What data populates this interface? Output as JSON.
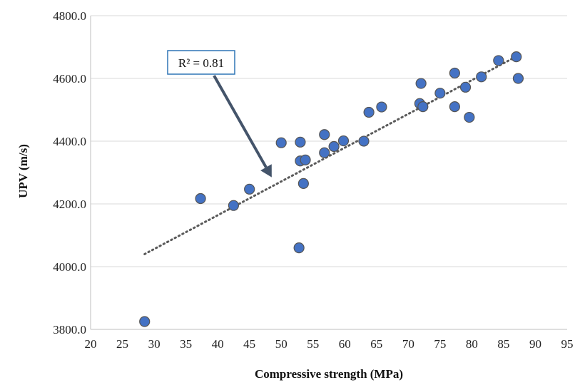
{
  "chart_data": {
    "type": "scatter",
    "xlabel": "Compressive strength (MPa)",
    "ylabel": "UPV (m/s)",
    "xlim": [
      20,
      95
    ],
    "ylim": [
      3800,
      4800
    ],
    "x_ticks": [
      "20",
      "25",
      "30",
      "35",
      "40",
      "45",
      "50",
      "55",
      "60",
      "65",
      "70",
      "75",
      "80",
      "85",
      "90",
      "95"
    ],
    "y_ticks": [
      "3800.0",
      "4000.0",
      "4200.0",
      "4400.0",
      "4600.0",
      "4800.0"
    ],
    "grid": "horizontal",
    "marker_color": "#4472C4",
    "marker_edge_color": "#555555",
    "trendline_color": "#595959",
    "arrow_color": "#44546A",
    "annotation_border_color": "#2E75B6",
    "points": [
      {
        "x": 28.5,
        "y": 3825
      },
      {
        "x": 37.3,
        "y": 4217
      },
      {
        "x": 42.5,
        "y": 4195
      },
      {
        "x": 45.0,
        "y": 4247
      },
      {
        "x": 50.0,
        "y": 4395
      },
      {
        "x": 52.8,
        "y": 4060
      },
      {
        "x": 53.0,
        "y": 4397
      },
      {
        "x": 53.0,
        "y": 4337
      },
      {
        "x": 53.5,
        "y": 4265
      },
      {
        "x": 53.8,
        "y": 4340
      },
      {
        "x": 56.8,
        "y": 4421
      },
      {
        "x": 56.8,
        "y": 4363
      },
      {
        "x": 58.3,
        "y": 4383
      },
      {
        "x": 59.8,
        "y": 4401
      },
      {
        "x": 63.0,
        "y": 4400
      },
      {
        "x": 63.8,
        "y": 4492
      },
      {
        "x": 65.8,
        "y": 4509
      },
      {
        "x": 71.8,
        "y": 4520
      },
      {
        "x": 72.0,
        "y": 4584
      },
      {
        "x": 72.3,
        "y": 4510
      },
      {
        "x": 75.0,
        "y": 4553
      },
      {
        "x": 77.3,
        "y": 4617
      },
      {
        "x": 77.3,
        "y": 4510
      },
      {
        "x": 79.0,
        "y": 4572
      },
      {
        "x": 79.6,
        "y": 4476
      },
      {
        "x": 81.5,
        "y": 4605
      },
      {
        "x": 84.2,
        "y": 4657
      },
      {
        "x": 87.0,
        "y": 4669
      },
      {
        "x": 87.3,
        "y": 4600
      }
    ],
    "trendline": {
      "x": [
        28.5,
        87.2
      ],
      "y": [
        4040,
        4672
      ]
    },
    "annotation": {
      "text": "R² = 0.81",
      "target": {
        "x": 48.5,
        "y": 4285
      }
    }
  }
}
